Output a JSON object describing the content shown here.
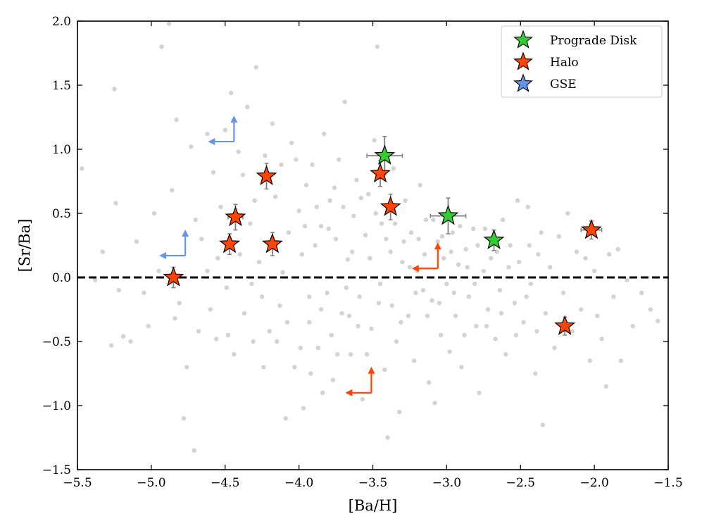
{
  "chart_data": {
    "type": "scatter",
    "xlabel": "[Ba/H]",
    "ylabel": "[Sr/Ba]",
    "xlim": [
      -5.5,
      -1.5
    ],
    "ylim": [
      -1.5,
      2.0
    ],
    "xticks": [
      -5.5,
      -5.0,
      -4.5,
      -4.0,
      -3.5,
      -3.0,
      -2.5,
      -2.0,
      -1.5
    ],
    "xtick_labels": [
      "−5.5",
      "−5.0",
      "−4.5",
      "−4.0",
      "−3.5",
      "−3.0",
      "−2.5",
      "−2.0",
      "−1.5"
    ],
    "yticks": [
      -1.5,
      -1.0,
      -0.5,
      0.0,
      0.5,
      1.0,
      1.5,
      2.0
    ],
    "ytick_labels": [
      "−1.5",
      "−1.0",
      "−0.5",
      "0.0",
      "0.5",
      "1.0",
      "1.5",
      "2.0"
    ],
    "reference_line": {
      "y": 0.0,
      "style": "dashed",
      "color": "#000000"
    },
    "legend_position": "top-right",
    "colors": {
      "background_points": "#d3d3d3",
      "prograde": "#33cc33",
      "halo": "#ff4500",
      "gse": "#6495ed",
      "errorbar": "#808080"
    },
    "series": [
      {
        "name": "Prograde Disk",
        "marker": "star",
        "color": "#33cc33",
        "points": [
          {
            "x": -3.42,
            "y": 0.95,
            "xerr": 0.12,
            "yerr": 0.15
          },
          {
            "x": -2.99,
            "y": 0.48,
            "xerr": 0.12,
            "yerr": 0.14
          },
          {
            "x": -2.68,
            "y": 0.29,
            "xerr": 0.0,
            "yerr": 0.08
          }
        ]
      },
      {
        "name": "Halo",
        "marker": "star",
        "color": "#ff4500",
        "points": [
          {
            "x": -4.85,
            "y": 0.0,
            "xerr": 0.0,
            "yerr": 0.08
          },
          {
            "x": -4.47,
            "y": 0.26,
            "xerr": 0.0,
            "yerr": 0.08
          },
          {
            "x": -4.43,
            "y": 0.47,
            "xerr": 0.05,
            "yerr": 0.1
          },
          {
            "x": -4.22,
            "y": 0.79,
            "xerr": 0.0,
            "yerr": 0.1
          },
          {
            "x": -4.18,
            "y": 0.26,
            "xerr": 0.0,
            "yerr": 0.09
          },
          {
            "x": -3.45,
            "y": 0.81,
            "xerr": 0.0,
            "yerr": 0.1
          },
          {
            "x": -3.38,
            "y": 0.55,
            "xerr": 0.0,
            "yerr": 0.1
          },
          {
            "x": -2.2,
            "y": -0.38,
            "xerr": 0.0,
            "yerr": 0.07
          },
          {
            "x": -2.02,
            "y": 0.37,
            "xerr": 0.07,
            "yerr": 0.07
          }
        ]
      },
      {
        "name": "GSE",
        "marker": "star",
        "color": "#6495ed",
        "points": []
      }
    ],
    "upper_limits": [
      {
        "x": -4.44,
        "y": 1.06,
        "color": "#6495ed",
        "group": "GSE"
      },
      {
        "x": -4.77,
        "y": 0.17,
        "color": "#6495ed",
        "group": "GSE"
      },
      {
        "x": -3.06,
        "y": 0.07,
        "color": "#ff4500",
        "group": "Halo"
      },
      {
        "x": -3.51,
        "y": -0.9,
        "color": "#ff4500",
        "group": "Halo"
      }
    ],
    "background_points": [
      [
        -5.47,
        0.85
      ],
      [
        -5.38,
        -0.02
      ],
      [
        -5.25,
        1.47
      ],
      [
        -5.24,
        0.58
      ],
      [
        -5.22,
        -0.1
      ],
      [
        -5.27,
        -0.53
      ],
      [
        -5.19,
        -0.46
      ],
      [
        -5.14,
        -0.5
      ],
      [
        -5.1,
        0.28
      ],
      [
        -5.05,
        -0.12
      ],
      [
        -5.02,
        -0.38
      ],
      [
        -4.98,
        0.5
      ],
      [
        -4.93,
        1.8
      ],
      [
        -4.88,
        1.98
      ],
      [
        -4.84,
        -0.32
      ],
      [
        -4.86,
        0.68
      ],
      [
        -4.83,
        1.23
      ],
      [
        -4.81,
        -0.2
      ],
      [
        -4.78,
        -1.1
      ],
      [
        -4.76,
        -0.7
      ],
      [
        -4.73,
        1.02
      ],
      [
        -4.71,
        -1.35
      ],
      [
        -4.68,
        -0.42
      ],
      [
        -4.66,
        0.3
      ],
      [
        -4.62,
        1.12
      ],
      [
        -4.6,
        -0.25
      ],
      [
        -4.58,
        0.82
      ],
      [
        -4.56,
        -0.48
      ],
      [
        -4.53,
        0.55
      ],
      [
        -4.5,
        1.15
      ],
      [
        -4.49,
        -0.08
      ],
      [
        -4.46,
        1.44
      ],
      [
        -4.44,
        -0.6
      ],
      [
        -4.41,
        0.98
      ],
      [
        -4.4,
        0.18
      ],
      [
        -4.37,
        -0.28
      ],
      [
        -4.35,
        1.33
      ],
      [
        -4.33,
        0.42
      ],
      [
        -4.31,
        -0.5
      ],
      [
        -4.29,
        1.64
      ],
      [
        -4.27,
        0.12
      ],
      [
        -4.25,
        -0.15
      ],
      [
        -4.23,
        0.95
      ],
      [
        -4.2,
        -0.42
      ],
      [
        -4.18,
        1.2
      ],
      [
        -4.16,
        0.63
      ],
      [
        -4.13,
        -0.22
      ],
      [
        -4.11,
        0.04
      ],
      [
        -4.09,
        -1.1
      ],
      [
        -4.07,
        0.35
      ],
      [
        -4.05,
        1.05
      ],
      [
        -4.03,
        -0.7
      ],
      [
        -4.0,
        0.52
      ],
      [
        -3.98,
        0.18
      ],
      [
        -3.97,
        -1.02
      ],
      [
        -3.95,
        0.72
      ],
      [
        -3.93,
        -0.35
      ],
      [
        -3.91,
        0.88
      ],
      [
        -3.89,
        0.25
      ],
      [
        -3.87,
        -0.55
      ],
      [
        -3.85,
        0.4
      ],
      [
        -3.83,
        1.12
      ],
      [
        -3.81,
        -0.12
      ],
      [
        -3.79,
        0.6
      ],
      [
        -3.77,
        -0.8
      ],
      [
        -3.75,
        0.3
      ],
      [
        -3.73,
        0.92
      ],
      [
        -3.71,
        -0.28
      ],
      [
        -3.69,
        1.37
      ],
      [
        -3.67,
        0.14
      ],
      [
        -3.65,
        -0.6
      ],
      [
        -3.63,
        0.48
      ],
      [
        -3.61,
        0.76
      ],
      [
        -3.59,
        -0.15
      ],
      [
        -3.57,
        -0.95
      ],
      [
        -3.55,
        0.33
      ],
      [
        -3.53,
        0.65
      ],
      [
        -3.51,
        -0.4
      ],
      [
        -3.49,
        1.07
      ],
      [
        -3.47,
        1.8
      ],
      [
        -3.46,
        -0.2
      ],
      [
        -3.44,
        0.42
      ],
      [
        -3.42,
        -0.72
      ],
      [
        -3.4,
        -1.25
      ],
      [
        -3.38,
        0.2
      ],
      [
        -3.36,
        0.85
      ],
      [
        -3.34,
        -0.5
      ],
      [
        -3.32,
        -1.05
      ],
      [
        -3.3,
        0.12
      ],
      [
        -3.28,
        0.6
      ],
      [
        -3.26,
        -0.3
      ],
      [
        -3.24,
        0.35
      ],
      [
        -3.22,
        -0.65
      ],
      [
        -3.2,
        0.05
      ],
      [
        -3.18,
        0.72
      ],
      [
        -3.16,
        -0.1
      ],
      [
        -3.14,
        0.45
      ],
      [
        -3.12,
        -0.82
      ],
      [
        -3.1,
        -0.18
      ],
      [
        -3.08,
        -0.98
      ],
      [
        -3.06,
        0.28
      ],
      [
        -3.04,
        -0.45
      ],
      [
        -3.02,
        0.15
      ],
      [
        -3.0,
        -0.05
      ],
      [
        -2.98,
        -0.58
      ],
      [
        -2.96,
        0.35
      ],
      [
        -2.94,
        -0.3
      ],
      [
        -2.92,
        0.1
      ],
      [
        -2.9,
        -0.7
      ],
      [
        -2.87,
        0.22
      ],
      [
        -2.85,
        -0.15
      ],
      [
        -2.82,
        0.38
      ],
      [
        -2.8,
        -0.38
      ],
      [
        -2.78,
        -0.9
      ],
      [
        -2.75,
        0.05
      ],
      [
        -2.72,
        -0.25
      ],
      [
        -2.7,
        0.15
      ],
      [
        -2.67,
        -0.48
      ],
      [
        -2.64,
        -0.1
      ],
      [
        -2.62,
        0.45
      ],
      [
        -2.6,
        -0.6
      ],
      [
        -2.57,
        0.25
      ],
      [
        -2.54,
        -0.2
      ],
      [
        -2.51,
        0.12
      ],
      [
        -2.48,
        -0.35
      ],
      [
        -2.45,
        0.55
      ],
      [
        -2.43,
        -0.05
      ],
      [
        -2.4,
        -0.75
      ],
      [
        -2.38,
        0.18
      ],
      [
        -2.35,
        -1.15
      ],
      [
        -2.33,
        -0.28
      ],
      [
        -2.3,
        0.08
      ],
      [
        -2.27,
        -0.55
      ],
      [
        -2.24,
        0.32
      ],
      [
        -2.21,
        -0.12
      ],
      [
        -2.18,
        0.5
      ],
      [
        -2.15,
        -0.42
      ],
      [
        -2.12,
        0.2
      ],
      [
        -2.09,
        -0.25
      ],
      [
        -2.06,
        0.15
      ],
      [
        -2.03,
        -0.65
      ],
      [
        -2.0,
        0.05
      ],
      [
        -1.98,
        -0.3
      ],
      [
        -1.95,
        -0.48
      ],
      [
        -1.92,
        -0.85
      ],
      [
        -1.9,
        0.18
      ],
      [
        -1.87,
        -0.15
      ],
      [
        -1.84,
        0.22
      ],
      [
        -1.82,
        -0.65
      ],
      [
        -1.78,
        -0.02
      ],
      [
        -1.74,
        -0.38
      ],
      [
        -1.68,
        -0.12
      ],
      [
        -1.62,
        -0.25
      ],
      [
        -1.57,
        -0.34
      ],
      [
        -5.33,
        0.2
      ],
      [
        -4.95,
        0.05
      ],
      [
        -4.7,
        0.45
      ],
      [
        -4.62,
        0.05
      ],
      [
        -4.55,
        0.15
      ],
      [
        -4.38,
        0.8
      ],
      [
        -4.3,
        0.6
      ],
      [
        -4.12,
        0.88
      ],
      [
        -4.02,
        0.92
      ],
      [
        -3.96,
        0.4
      ],
      [
        -3.88,
        0.55
      ],
      [
        -3.8,
        0.38
      ],
      [
        -3.76,
        0.7
      ],
      [
        -3.7,
        0.55
      ],
      [
        -3.64,
        0.2
      ],
      [
        -3.58,
        0.62
      ],
      [
        -3.52,
        0.15
      ],
      [
        -3.48,
        0.5
      ],
      [
        -3.41,
        0.3
      ],
      [
        -3.35,
        0.42
      ],
      [
        -3.29,
        0.28
      ],
      [
        -3.25,
        0.08
      ],
      [
        -3.19,
        0.3
      ],
      [
        -3.15,
        0.18
      ],
      [
        -3.09,
        0.45
      ],
      [
        -3.03,
        0.32
      ],
      [
        -2.97,
        0.2
      ],
      [
        -2.91,
        0.4
      ],
      [
        -2.86,
        0.08
      ],
      [
        -2.79,
        0.25
      ],
      [
        -2.74,
        0.38
      ],
      [
        -2.66,
        0.2
      ],
      [
        -2.58,
        0.08
      ],
      [
        -2.52,
        0.6
      ],
      [
        -2.44,
        0.25
      ],
      [
        -2.36,
        0.35
      ],
      [
        -3.93,
        -0.15
      ],
      [
        -3.85,
        -0.25
      ],
      [
        -3.78,
        -0.45
      ],
      [
        -3.68,
        -0.08
      ],
      [
        -3.6,
        -0.38
      ],
      [
        -3.54,
        -0.6
      ],
      [
        -3.45,
        -0.05
      ],
      [
        -3.37,
        -0.22
      ],
      [
        -3.31,
        -0.35
      ],
      [
        -3.21,
        -0.12
      ],
      [
        -3.13,
        -0.3
      ],
      [
        -3.05,
        -0.2
      ],
      [
        -2.95,
        -0.12
      ],
      [
        -2.88,
        -0.45
      ],
      [
        -2.81,
        -0.05
      ],
      [
        -2.73,
        -0.38
      ],
      [
        -2.63,
        -0.28
      ],
      [
        -2.53,
        -0.45
      ],
      [
        -2.46,
        -0.15
      ],
      [
        -2.39,
        -0.42
      ],
      [
        -4.48,
        -0.45
      ],
      [
        -4.32,
        -0.05
      ],
      [
        -4.24,
        -0.7
      ],
      [
        -4.15,
        -0.5
      ],
      [
        -4.08,
        -0.35
      ],
      [
        -3.99,
        -0.55
      ],
      [
        -3.92,
        -0.75
      ],
      [
        -3.84,
        -0.9
      ],
      [
        -3.74,
        -0.6
      ],
      [
        -3.66,
        -0.3
      ]
    ]
  },
  "legend": {
    "items": [
      {
        "label": "Prograde Disk",
        "color": "#33cc33"
      },
      {
        "label": "Halo",
        "color": "#ff4500"
      },
      {
        "label": "GSE",
        "color": "#6495ed"
      }
    ]
  }
}
